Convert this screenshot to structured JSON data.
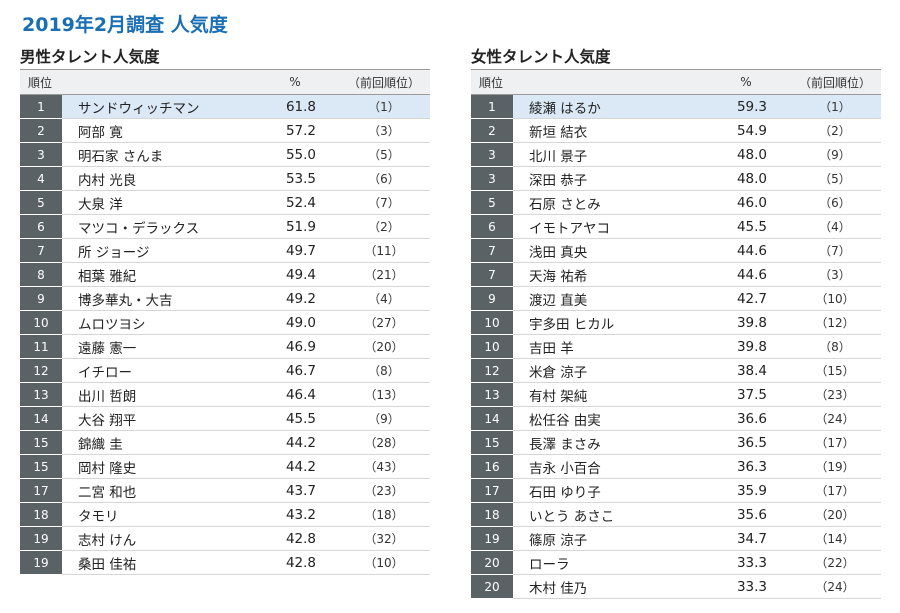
{
  "title": "2019年2月調査 人気度",
  "male": {
    "heading": "男性タレント人気度",
    "columns": {
      "rank": "順位",
      "pct": "%",
      "prev": "（前回順位）"
    },
    "rows": [
      {
        "rank": "1",
        "name": "サンドウィッチマン",
        "pct": "61.8",
        "prev": "（1）"
      },
      {
        "rank": "2",
        "name": "阿部 寛",
        "pct": "57.2",
        "prev": "（3）"
      },
      {
        "rank": "3",
        "name": "明石家 さんま",
        "pct": "55.0",
        "prev": "（5）"
      },
      {
        "rank": "4",
        "name": "内村 光良",
        "pct": "53.5",
        "prev": "（6）"
      },
      {
        "rank": "5",
        "name": "大泉 洋",
        "pct": "52.4",
        "prev": "（7）"
      },
      {
        "rank": "6",
        "name": "マツコ・デラックス",
        "pct": "51.9",
        "prev": "（2）"
      },
      {
        "rank": "7",
        "name": "所 ジョージ",
        "pct": "49.7",
        "prev": "（11）"
      },
      {
        "rank": "8",
        "name": "相葉 雅紀",
        "pct": "49.4",
        "prev": "（21）"
      },
      {
        "rank": "9",
        "name": "博多華丸・大吉",
        "pct": "49.2",
        "prev": "（4）"
      },
      {
        "rank": "10",
        "name": "ムロツヨシ",
        "pct": "49.0",
        "prev": "（27）"
      },
      {
        "rank": "11",
        "name": "遠藤 憲一",
        "pct": "46.9",
        "prev": "（20）"
      },
      {
        "rank": "12",
        "name": "イチロー",
        "pct": "46.7",
        "prev": "（8）"
      },
      {
        "rank": "13",
        "name": "出川 哲朗",
        "pct": "46.4",
        "prev": "（13）"
      },
      {
        "rank": "14",
        "name": "大谷 翔平",
        "pct": "45.5",
        "prev": "（9）"
      },
      {
        "rank": "15",
        "name": "錦織 圭",
        "pct": "44.2",
        "prev": "（28）"
      },
      {
        "rank": "15",
        "name": "岡村 隆史",
        "pct": "44.2",
        "prev": "（43）"
      },
      {
        "rank": "17",
        "name": "二宮 和也",
        "pct": "43.7",
        "prev": "（23）"
      },
      {
        "rank": "18",
        "name": "タモリ",
        "pct": "43.2",
        "prev": "（18）"
      },
      {
        "rank": "19",
        "name": "志村 けん",
        "pct": "42.8",
        "prev": "（32）"
      },
      {
        "rank": "19",
        "name": "桑田 佳祐",
        "pct": "42.8",
        "prev": "（10）"
      }
    ]
  },
  "female": {
    "heading": "女性タレント人気度",
    "columns": {
      "rank": "順位",
      "pct": "%",
      "prev": "（前回順位）"
    },
    "rows": [
      {
        "rank": "1",
        "name": "綾瀬 はるか",
        "pct": "59.3",
        "prev": "（1）"
      },
      {
        "rank": "2",
        "name": "新垣 結衣",
        "pct": "54.9",
        "prev": "（2）"
      },
      {
        "rank": "3",
        "name": "北川 景子",
        "pct": "48.0",
        "prev": "（9）"
      },
      {
        "rank": "3",
        "name": "深田 恭子",
        "pct": "48.0",
        "prev": "（5）"
      },
      {
        "rank": "5",
        "name": "石原 さとみ",
        "pct": "46.0",
        "prev": "（6）"
      },
      {
        "rank": "6",
        "name": "イモトアヤコ",
        "pct": "45.5",
        "prev": "（4）"
      },
      {
        "rank": "7",
        "name": "浅田 真央",
        "pct": "44.6",
        "prev": "（7）"
      },
      {
        "rank": "7",
        "name": "天海 祐希",
        "pct": "44.6",
        "prev": "（3）"
      },
      {
        "rank": "9",
        "name": "渡辺 直美",
        "pct": "42.7",
        "prev": "（10）"
      },
      {
        "rank": "10",
        "name": "宇多田 ヒカル",
        "pct": "39.8",
        "prev": "（12）"
      },
      {
        "rank": "10",
        "name": "吉田 羊",
        "pct": "39.8",
        "prev": "（8）"
      },
      {
        "rank": "12",
        "name": "米倉 涼子",
        "pct": "38.4",
        "prev": "（15）"
      },
      {
        "rank": "13",
        "name": "有村 架純",
        "pct": "37.5",
        "prev": "（23）"
      },
      {
        "rank": "14",
        "name": "松任谷 由実",
        "pct": "36.6",
        "prev": "（24）"
      },
      {
        "rank": "15",
        "name": "長澤 まさみ",
        "pct": "36.5",
        "prev": "（17）"
      },
      {
        "rank": "16",
        "name": "吉永 小百合",
        "pct": "36.3",
        "prev": "（19）"
      },
      {
        "rank": "17",
        "name": "石田 ゆり子",
        "pct": "35.9",
        "prev": "（17）"
      },
      {
        "rank": "18",
        "name": "いとう あさこ",
        "pct": "35.6",
        "prev": "（20）"
      },
      {
        "rank": "19",
        "name": "篠原 涼子",
        "pct": "34.7",
        "prev": "（14）"
      },
      {
        "rank": "20",
        "name": "ローラ",
        "pct": "33.3",
        "prev": "（22）"
      },
      {
        "rank": "20",
        "name": "木村 佳乃",
        "pct": "33.3",
        "prev": "（24）"
      }
    ]
  },
  "colors": {
    "title": "#1a6fb4",
    "rank_cell": "#5b6266",
    "header_bg": "#eef0f1",
    "top_row_highlight": "#dbe9f7"
  }
}
